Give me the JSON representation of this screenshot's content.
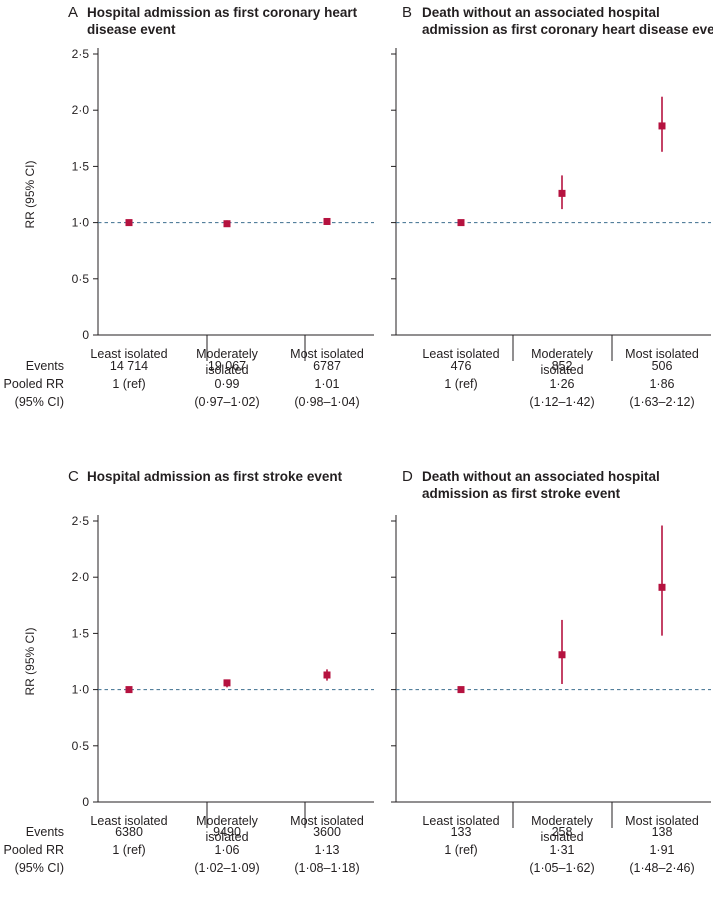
{
  "colors": {
    "accent": "#b5123f",
    "reference_line": "#3c6e8f",
    "text": "#231f20"
  },
  "table_labels": {
    "events": "Events",
    "pooled_1": "Pooled RR",
    "pooled_2": "(95% CI)"
  },
  "chart_data": [
    {
      "id": "A",
      "letter": "A",
      "type": "scatter",
      "title_lines": [
        "Hospital admission as first coronary heart",
        "disease event"
      ],
      "ylabel": "RR (95% CI)",
      "ylim": [
        0,
        2.5
      ],
      "yticks": [
        "0",
        "0·5",
        "1·0",
        "1·5",
        "2·0",
        "2·5"
      ],
      "reference_value": 1.0,
      "categories": [
        [
          "Least isolated"
        ],
        [
          "Moderately",
          "isolated"
        ],
        [
          "Most isolated"
        ]
      ],
      "rr": [
        1.0,
        0.99,
        1.01
      ],
      "lower": [
        1.0,
        0.97,
        0.98
      ],
      "upper": [
        1.0,
        1.02,
        1.04
      ],
      "events": [
        "14 714",
        "19 067",
        "6787"
      ],
      "pooled_rr": [
        "1 (ref)",
        "0·99",
        "1·01"
      ],
      "ci_text": [
        "",
        "(0·97–1·02)",
        "(0·98–1·04)"
      ]
    },
    {
      "id": "B",
      "letter": "B",
      "type": "scatter",
      "title_lines": [
        "Death without an associated hospital",
        "admission as first coronary heart disease event"
      ],
      "ylabel": "",
      "ylim": [
        0,
        2.5
      ],
      "reference_value": 1.0,
      "categories": [
        [
          "Least isolated"
        ],
        [
          "Moderately",
          "isolated"
        ],
        [
          "Most isolated"
        ]
      ],
      "rr": [
        1.0,
        1.26,
        1.86
      ],
      "lower": [
        1.0,
        1.12,
        1.63
      ],
      "upper": [
        1.0,
        1.42,
        2.12
      ],
      "events": [
        "476",
        "852",
        "506"
      ],
      "pooled_rr": [
        "1 (ref)",
        "1·26",
        "1·86"
      ],
      "ci_text": [
        "",
        "(1·12–1·42)",
        "(1·63–2·12)"
      ]
    },
    {
      "id": "C",
      "letter": "C",
      "type": "scatter",
      "title_lines": [
        "Hospital admission as first stroke event"
      ],
      "ylabel": "RR (95% CI)",
      "ylim": [
        0,
        2.5
      ],
      "yticks": [
        "0",
        "0·5",
        "1·0",
        "1·5",
        "2·0",
        "2·5"
      ],
      "reference_value": 1.0,
      "categories": [
        [
          "Least isolated"
        ],
        [
          "Moderately",
          "isolated"
        ],
        [
          "Most isolated"
        ]
      ],
      "rr": [
        1.0,
        1.06,
        1.13
      ],
      "lower": [
        1.0,
        1.02,
        1.08
      ],
      "upper": [
        1.0,
        1.09,
        1.18
      ],
      "events": [
        "6380",
        "9490",
        "3600"
      ],
      "pooled_rr": [
        "1 (ref)",
        "1·06",
        "1·13"
      ],
      "ci_text": [
        "",
        "(1·02–1·09)",
        "(1·08–1·18)"
      ]
    },
    {
      "id": "D",
      "letter": "D",
      "type": "scatter",
      "title_lines": [
        "Death without an associated hospital",
        "admission as first stroke event"
      ],
      "ylabel": "",
      "ylim": [
        0,
        2.5
      ],
      "reference_value": 1.0,
      "categories": [
        [
          "Least isolated"
        ],
        [
          "Moderately",
          "isolated"
        ],
        [
          "Most isolated"
        ]
      ],
      "rr": [
        1.0,
        1.31,
        1.91
      ],
      "lower": [
        1.0,
        1.05,
        1.48
      ],
      "upper": [
        1.0,
        1.62,
        2.46
      ],
      "events": [
        "133",
        "258",
        "138"
      ],
      "pooled_rr": [
        "1 (ref)",
        "1·31",
        "1·91"
      ],
      "ci_text": [
        "",
        "(1·05–1·62)",
        "(1·48–2·46)"
      ]
    }
  ]
}
